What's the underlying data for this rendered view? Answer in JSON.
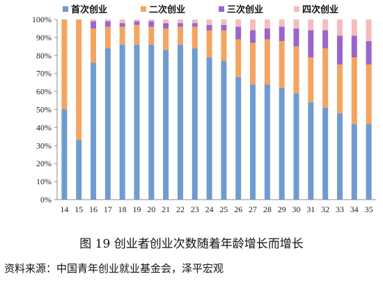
{
  "caption": "图 19  创业者创业次数随着年龄增长而增长",
  "source": "资料来源：中国青年创业就业基金会，泽平宏观",
  "chart_data": {
    "type": "bar",
    "stacked": true,
    "percent": true,
    "categories": [
      "14",
      "15",
      "16",
      "17",
      "18",
      "19",
      "20",
      "21",
      "22",
      "23",
      "24",
      "25",
      "26",
      "27",
      "28",
      "29",
      "30",
      "31",
      "32",
      "33",
      "34",
      "35"
    ],
    "series": [
      {
        "name": "首次创业",
        "color": "#6f9bd0",
        "values": [
          50,
          33,
          76,
          84,
          86,
          86,
          86,
          83,
          86,
          84,
          79,
          77,
          68,
          64,
          64,
          62,
          59,
          54,
          51,
          48,
          42,
          42
        ]
      },
      {
        "name": "二次创业",
        "color": "#f4a460",
        "values": [
          50,
          67,
          19,
          12,
          10,
          11,
          10,
          12,
          10,
          12,
          15,
          17,
          21,
          23,
          25,
          26,
          26,
          25,
          33,
          27,
          37,
          33
        ]
      },
      {
        "name": "三次创业",
        "color": "#9966cc",
        "values": [
          0,
          0,
          4,
          3,
          2,
          2,
          3,
          3,
          2,
          2,
          3,
          3,
          7,
          7,
          6,
          8,
          10,
          15,
          10,
          16,
          12,
          13
        ]
      },
      {
        "name": "四次创业",
        "color": "#f4bcbc",
        "values": [
          0,
          0,
          1,
          1,
          2,
          1,
          1,
          2,
          2,
          2,
          3,
          3,
          4,
          6,
          5,
          4,
          5,
          6,
          6,
          9,
          9,
          12
        ]
      }
    ],
    "y_ticks": [
      "0%",
      "10%",
      "20%",
      "30%",
      "40%",
      "50%",
      "60%",
      "70%",
      "80%",
      "90%",
      "100%"
    ],
    "ylim": [
      0,
      100
    ],
    "grid": false,
    "legend_position": "top"
  }
}
